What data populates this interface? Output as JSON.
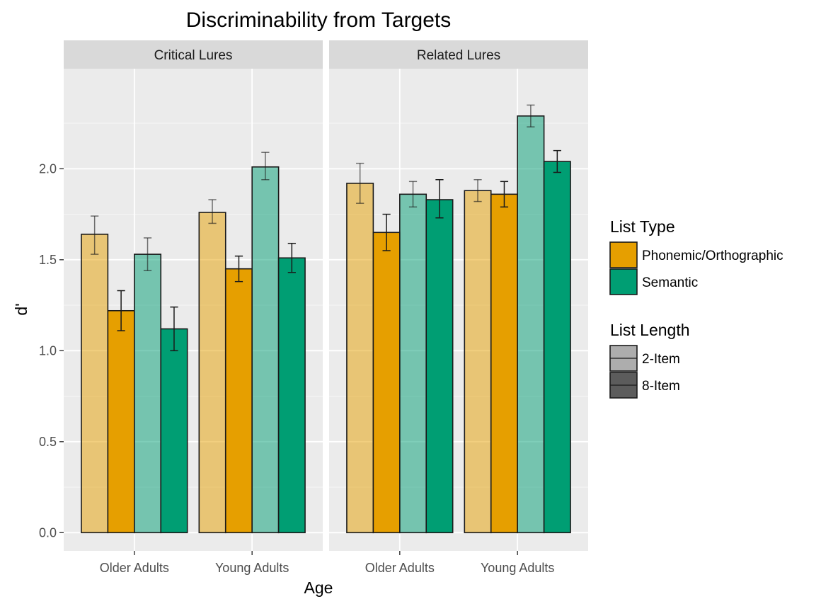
{
  "chart_data": {
    "type": "bar",
    "title": "Discriminability from Targets",
    "xlabel": "Age",
    "ylabel": "d'",
    "ylim": [
      -0.1,
      2.55
    ],
    "yticks": [
      0.0,
      0.5,
      1.0,
      1.5,
      2.0
    ],
    "ytick_labels": [
      "0.0",
      "0.5",
      "1.0",
      "1.5",
      "2.0"
    ],
    "grid": true,
    "legend_position": "right",
    "categories": [
      "Older Adults",
      "Young Adults"
    ],
    "panels": [
      {
        "label": "Critical Lures",
        "groups": [
          {
            "category": "Older Adults",
            "bars": [
              {
                "type": "Phonemic/Orthographic",
                "length": "2-Item",
                "value": 1.64,
                "lo": 1.53,
                "hi": 1.74
              },
              {
                "type": "Phonemic/Orthographic",
                "length": "8-Item",
                "value": 1.22,
                "lo": 1.11,
                "hi": 1.33
              },
              {
                "type": "Semantic",
                "length": "2-Item",
                "value": 1.53,
                "lo": 1.44,
                "hi": 1.62
              },
              {
                "type": "Semantic",
                "length": "8-Item",
                "value": 1.12,
                "lo": 1.0,
                "hi": 1.24
              }
            ]
          },
          {
            "category": "Young Adults",
            "bars": [
              {
                "type": "Phonemic/Orthographic",
                "length": "2-Item",
                "value": 1.76,
                "lo": 1.7,
                "hi": 1.83
              },
              {
                "type": "Phonemic/Orthographic",
                "length": "8-Item",
                "value": 1.45,
                "lo": 1.38,
                "hi": 1.52
              },
              {
                "type": "Semantic",
                "length": "2-Item",
                "value": 2.01,
                "lo": 1.94,
                "hi": 2.09
              },
              {
                "type": "Semantic",
                "length": "8-Item",
                "value": 1.51,
                "lo": 1.43,
                "hi": 1.59
              }
            ]
          }
        ]
      },
      {
        "label": "Related Lures",
        "groups": [
          {
            "category": "Older Adults",
            "bars": [
              {
                "type": "Phonemic/Orthographic",
                "length": "2-Item",
                "value": 1.92,
                "lo": 1.81,
                "hi": 2.03
              },
              {
                "type": "Phonemic/Orthographic",
                "length": "8-Item",
                "value": 1.65,
                "lo": 1.55,
                "hi": 1.75
              },
              {
                "type": "Semantic",
                "length": "2-Item",
                "value": 1.86,
                "lo": 1.79,
                "hi": 1.93
              },
              {
                "type": "Semantic",
                "length": "8-Item",
                "value": 1.83,
                "lo": 1.73,
                "hi": 1.94
              }
            ]
          },
          {
            "category": "Young Adults",
            "bars": [
              {
                "type": "Phonemic/Orthographic",
                "length": "2-Item",
                "value": 1.88,
                "lo": 1.82,
                "hi": 1.94
              },
              {
                "type": "Phonemic/Orthographic",
                "length": "8-Item",
                "value": 1.86,
                "lo": 1.79,
                "hi": 1.93
              },
              {
                "type": "Semantic",
                "length": "2-Item",
                "value": 2.29,
                "lo": 2.23,
                "hi": 2.35
              },
              {
                "type": "Semantic",
                "length": "8-Item",
                "value": 2.04,
                "lo": 1.98,
                "hi": 2.1
              }
            ]
          }
        ]
      }
    ],
    "legend": {
      "fill": {
        "title": "List Type",
        "items": [
          {
            "label": "Phonemic/Orthographic",
            "color": "#e69f00"
          },
          {
            "label": "Semantic",
            "color": "#009e73"
          }
        ]
      },
      "alpha": {
        "title": "List Length",
        "items": [
          {
            "label": "2-Item",
            "alpha": 0.5
          },
          {
            "label": "8-Item",
            "alpha": 1.0
          }
        ]
      }
    },
    "colors": {
      "Phonemic/Orthographic": "#e69f00",
      "Semantic": "#009e73",
      "panel_background": "#ebebeb",
      "strip_background": "#d9d9d9",
      "grid": "#ffffff"
    }
  }
}
